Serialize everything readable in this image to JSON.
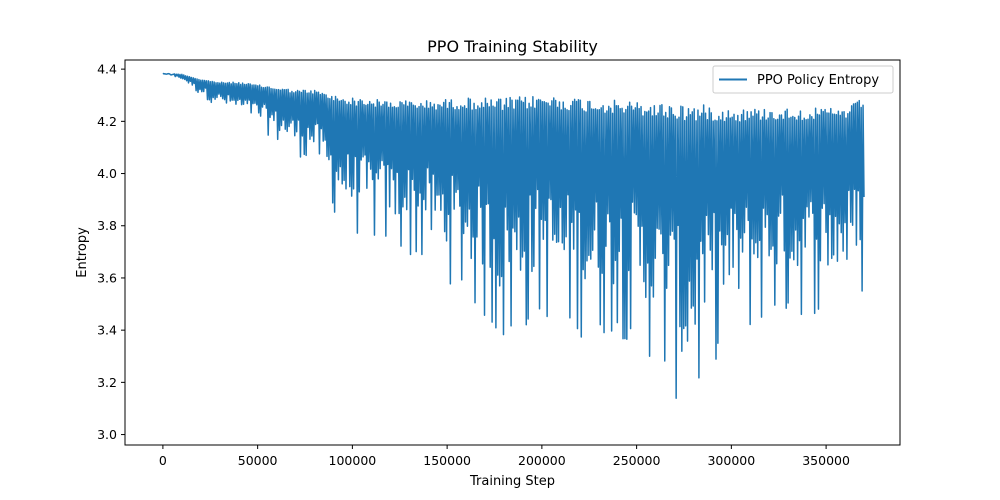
{
  "chart_data": {
    "type": "line",
    "title": "PPO Training Stability",
    "xlabel": "Training Step",
    "ylabel": "Entropy",
    "xlim": [
      -20000,
      389000
    ],
    "ylim": [
      2.96,
      4.435
    ],
    "x_ticks": [
      0,
      50000,
      100000,
      150000,
      200000,
      250000,
      300000,
      350000
    ],
    "x_tick_labels": [
      "0",
      "50000",
      "100000",
      "150000",
      "200000",
      "250000",
      "300000",
      "350000"
    ],
    "y_ticks": [
      3.0,
      3.2,
      3.4,
      3.6,
      3.8,
      4.0,
      4.2,
      4.4
    ],
    "y_tick_labels": [
      "3.0",
      "3.2",
      "3.4",
      "3.6",
      "3.8",
      "4.0",
      "4.2",
      "4.4"
    ],
    "grid": false,
    "legend_position": "top-right",
    "series": [
      {
        "name": "PPO Policy Entropy",
        "color": "#1f77b4",
        "envelope": {
          "x": [
            0,
            10000,
            20000,
            30000,
            40000,
            50000,
            60000,
            70000,
            80000,
            90000,
            100000,
            120000,
            140000,
            160000,
            180000,
            200000,
            220000,
            240000,
            260000,
            270000,
            275000,
            290000,
            300000,
            320000,
            340000,
            360000,
            370000
          ],
          "upper": [
            4.385,
            4.38,
            4.36,
            4.35,
            4.35,
            4.34,
            4.33,
            4.32,
            4.32,
            4.3,
            4.29,
            4.28,
            4.28,
            4.29,
            4.29,
            4.3,
            4.29,
            4.28,
            4.27,
            4.27,
            4.27,
            4.26,
            4.25,
            4.25,
            4.25,
            4.25,
            4.29
          ],
          "lower": [
            4.38,
            4.36,
            4.3,
            4.25,
            4.22,
            4.18,
            4.12,
            4.07,
            4.04,
            3.85,
            3.77,
            3.72,
            3.64,
            3.53,
            3.33,
            3.45,
            3.37,
            3.38,
            3.27,
            3.15,
            3.02,
            3.27,
            3.34,
            3.45,
            3.45,
            3.5,
            3.53
          ]
        },
        "samples": 740
      }
    ]
  }
}
